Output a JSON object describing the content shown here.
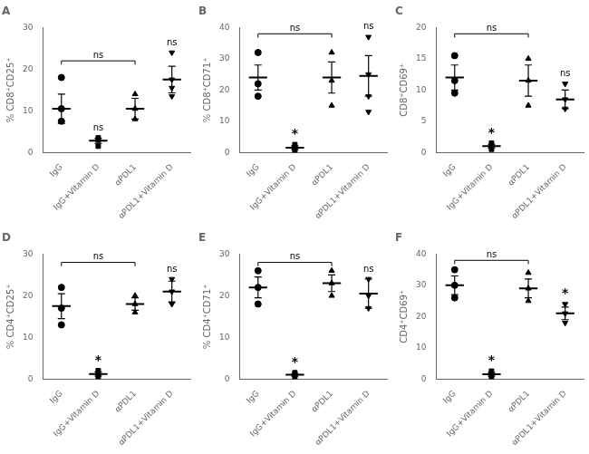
{
  "chart_data": [
    {
      "type": "scatter",
      "title": "A",
      "ylabel": "% CD8⁺CD25⁺",
      "categories": [
        "IgG",
        "IgG+Vitamin D",
        "αPDL1",
        "αPDL1+Vitamin D"
      ],
      "points": [
        [
          7.5,
          10.5,
          18.0
        ],
        [
          1.5,
          3.0,
          3.5
        ],
        [
          8.0,
          10.5,
          14.0
        ],
        [
          13.5,
          15.5,
          17.5,
          24.0
        ]
      ],
      "means": [
        10.5,
        2.8,
        10.5,
        17.5
      ],
      "errors": [
        3.5,
        0.6,
        2.5,
        3.2
      ],
      "markers": [
        "circle",
        "square",
        "triangle",
        "triangle-down"
      ],
      "color": "black",
      "ylim": [
        0,
        30
      ],
      "yticks": [
        0,
        10,
        20,
        30
      ],
      "grid": false,
      "annotations": [
        {
          "x1": "IgG",
          "x2": "αPDL1",
          "y": 22,
          "text": "ns"
        },
        {
          "x": "IgG+Vitamin D",
          "text": "ns"
        },
        {
          "x": "αPDL1+Vitamin D",
          "text": "ns"
        }
      ]
    },
    {
      "type": "scatter",
      "title": "B",
      "ylabel": "% CD8⁺CD71⁺",
      "categories": [
        "IgG",
        "IgG+Vitamin D",
        "αPDL1",
        "αPDL1+Vitamin D"
      ],
      "points": [
        [
          18.0,
          22.0,
          32.0
        ],
        [
          0.5,
          1.5,
          2.5
        ],
        [
          15.0,
          23.0,
          32.0
        ],
        [
          13.0,
          18.0,
          25.0,
          37.0
        ]
      ],
      "means": [
        24.0,
        1.5,
        24.0,
        24.5
      ],
      "errors": [
        4.0,
        0.6,
        5.0,
        6.5
      ],
      "markers": [
        "circle",
        "square",
        "triangle",
        "triangle-down"
      ],
      "color": "black",
      "ylim": [
        0,
        40
      ],
      "yticks": [
        0,
        10,
        20,
        30,
        40
      ],
      "grid": false,
      "annotations": [
        {
          "x1": "IgG",
          "x2": "αPDL1",
          "y": 38,
          "text": "ns"
        },
        {
          "x": "IgG+Vitamin D",
          "text": "*"
        },
        {
          "x": "αPDL1+Vitamin D",
          "text": "ns"
        }
      ]
    },
    {
      "type": "scatter",
      "title": "C",
      "ylabel": "CD8⁺CD69⁺",
      "categories": [
        "IgG",
        "IgG+Vitamin D",
        "αPDL1",
        "αPDL1+Vitamin D"
      ],
      "points": [
        [
          9.5,
          11.5,
          15.5
        ],
        [
          0.5,
          1.0,
          1.5
        ],
        [
          7.5,
          11.5,
          15.0
        ],
        [
          7.0,
          8.5,
          11.0
        ]
      ],
      "means": [
        12.0,
        1.0,
        11.5,
        8.5
      ],
      "errors": [
        2.0,
        0.3,
        2.5,
        1.5
      ],
      "markers": [
        "circle",
        "square",
        "triangle",
        "triangle-down"
      ],
      "color": "black",
      "ylim": [
        0,
        20
      ],
      "yticks": [
        0,
        5,
        10,
        15,
        20
      ],
      "grid": false,
      "annotations": [
        {
          "x1": "IgG",
          "x2": "αPDL1",
          "y": 19,
          "text": "ns"
        },
        {
          "x": "IgG+Vitamin D",
          "text": "*"
        },
        {
          "x": "αPDL1+Vitamin D",
          "text": "ns"
        }
      ]
    },
    {
      "type": "scatter",
      "title": "D",
      "ylabel": "% CD4⁺CD25⁺",
      "categories": [
        "IgG",
        "IgG+Vitamin D",
        "αPDL1",
        "αPDL1+Vitamin D"
      ],
      "points": [
        [
          13.0,
          17.0,
          22.0
        ],
        [
          0.5,
          1.0,
          2.0
        ],
        [
          16.0,
          18.0,
          20.0
        ],
        [
          18.0,
          21.0,
          24.0
        ]
      ],
      "means": [
        17.5,
        1.2,
        18.0,
        21.0
      ],
      "errors": [
        3.0,
        0.5,
        1.5,
        2.5
      ],
      "markers": [
        "circle",
        "square",
        "triangle",
        "triangle-down"
      ],
      "color": "black",
      "ylim": [
        0,
        30
      ],
      "yticks": [
        0,
        10,
        20,
        30
      ],
      "grid": false,
      "annotations": [
        {
          "x1": "IgG",
          "x2": "αPDL1",
          "y": 28,
          "text": "ns"
        },
        {
          "x": "IgG+Vitamin D",
          "text": "*"
        },
        {
          "x": "αPDL1+Vitamin D",
          "text": "ns"
        }
      ]
    },
    {
      "type": "scatter",
      "title": "E",
      "ylabel": "% CD4⁺CD71⁺",
      "categories": [
        "IgG",
        "IgG+Vitamin D",
        "αPDL1",
        "αPDL1+Vitamin D"
      ],
      "points": [
        [
          18.0,
          22.0,
          26.0
        ],
        [
          0.5,
          1.0,
          1.5
        ],
        [
          20.0,
          23.0,
          26.0
        ],
        [
          17.0,
          20.0,
          24.0
        ]
      ],
      "means": [
        22.0,
        1.0,
        23.0,
        20.5
      ],
      "errors": [
        2.5,
        0.3,
        2.0,
        3.5
      ],
      "markers": [
        "circle",
        "square",
        "triangle",
        "triangle-down"
      ],
      "color": "black",
      "ylim": [
        0,
        30
      ],
      "yticks": [
        0,
        10,
        20,
        30
      ],
      "grid": false,
      "annotations": [
        {
          "x1": "IgG",
          "x2": "αPDL1",
          "y": 28,
          "text": "ns"
        },
        {
          "x": "IgG+Vitamin D",
          "text": "*"
        },
        {
          "x": "αPDL1+Vitamin D",
          "text": "ns"
        }
      ]
    },
    {
      "type": "scatter",
      "title": "F",
      "ylabel": "CD4⁺CD69⁺",
      "categories": [
        "IgG",
        "IgG+Vitamin D",
        "αPDL1",
        "αPDL1+Vitamin D"
      ],
      "points": [
        [
          26.0,
          30.0,
          35.0
        ],
        [
          0.5,
          1.5,
          2.5
        ],
        [
          25.0,
          29.0,
          34.0
        ],
        [
          18.0,
          21.0,
          24.0
        ]
      ],
      "means": [
        30.0,
        1.5,
        29.0,
        21.0
      ],
      "errors": [
        3.0,
        0.6,
        3.0,
        2.0
      ],
      "markers": [
        "circle",
        "square",
        "triangle",
        "triangle-down"
      ],
      "color": "black",
      "ylim": [
        0,
        40
      ],
      "yticks": [
        0,
        10,
        20,
        30,
        40
      ],
      "grid": false,
      "annotations": [
        {
          "x1": "IgG",
          "x2": "αPDL1",
          "y": 38,
          "text": "ns"
        },
        {
          "x": "IgG+Vitamin D",
          "text": "*"
        },
        {
          "x": "αPDL1+Vitamin D",
          "text": "*"
        }
      ]
    }
  ]
}
